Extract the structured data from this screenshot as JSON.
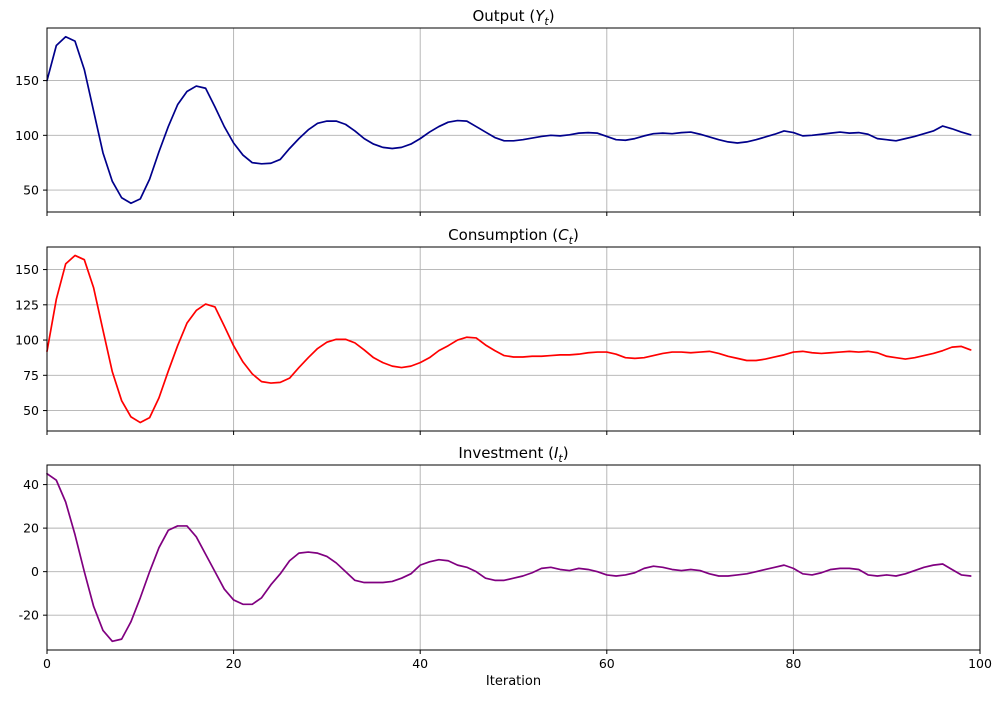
{
  "figure": {
    "background": "#ffffff",
    "grid_color": "#b0b0b0",
    "axis_color": "#000000"
  },
  "chart_data": [
    {
      "type": "line",
      "title": "Output (Y_t)",
      "title_prefix": "Output (",
      "title_var": "Y",
      "title_sub": "t",
      "title_suffix": ")",
      "color": "#00008b",
      "x_start": 0,
      "x_step": 1,
      "xlim": [
        0,
        100
      ],
      "xticks": [
        0,
        20,
        40,
        60,
        80,
        100
      ],
      "ylim": [
        30,
        198
      ],
      "yticks": [
        50,
        100,
        150
      ],
      "grid": true,
      "values": [
        150,
        182,
        190,
        186,
        160,
        122,
        84,
        58,
        43,
        38,
        42,
        60,
        85,
        108,
        128,
        140,
        145,
        143,
        126,
        108,
        93,
        82,
        75,
        74,
        74.5,
        78,
        88,
        97,
        105,
        111,
        113,
        113,
        110,
        104,
        97,
        92,
        89,
        88,
        89,
        92,
        97,
        103,
        108,
        112,
        113.5,
        113,
        108,
        103,
        98,
        95,
        95,
        96,
        97.5,
        99,
        100,
        99.5,
        100.5,
        102,
        102.5,
        102,
        99,
        96,
        95.5,
        97,
        99.5,
        101.5,
        102,
        101.5,
        102.5,
        103,
        101,
        98.5,
        96,
        94,
        93,
        94,
        96,
        98.5,
        101,
        104,
        102.5,
        99.5,
        100,
        101,
        102,
        103,
        102,
        102.5,
        101,
        97,
        96,
        95,
        97,
        99,
        101.5,
        104,
        108.5,
        106,
        103,
        100.5
      ]
    },
    {
      "type": "line",
      "title": "Consumption (C_t)",
      "title_prefix": "Consumption (",
      "title_var": "C",
      "title_sub": "t",
      "title_suffix": ")",
      "color": "#ff0000",
      "x_start": 0,
      "x_step": 1,
      "xlim": [
        0,
        100
      ],
      "xticks": [
        0,
        20,
        40,
        60,
        80,
        100
      ],
      "ylim": [
        35.5,
        166
      ],
      "yticks": [
        50,
        75,
        100,
        125,
        150
      ],
      "grid": true,
      "values": [
        92,
        129,
        154,
        160,
        157,
        137,
        107,
        77.5,
        57,
        45.5,
        41.5,
        45,
        59,
        78,
        96,
        112,
        121,
        125.5,
        123.5,
        110,
        96,
        84.5,
        76,
        70.5,
        69.5,
        70,
        73,
        80.5,
        87.5,
        94,
        98.5,
        100.5,
        100.5,
        98,
        93,
        87.5,
        84,
        81.5,
        80.5,
        81.5,
        84,
        87.5,
        92.5,
        96,
        100,
        102,
        101.5,
        96.5,
        92.5,
        89,
        88,
        88,
        88.5,
        88.5,
        89,
        89.5,
        89.5,
        90,
        91,
        91.5,
        91.5,
        90,
        87.5,
        87,
        87.5,
        89,
        90.5,
        91.5,
        91.5,
        91,
        91.5,
        92,
        90.5,
        88.5,
        87,
        85.5,
        85.5,
        86.5,
        88,
        89.5,
        91.5,
        92,
        91,
        90.5,
        91,
        91.5,
        92,
        91.5,
        92,
        91,
        88.5,
        87.5,
        86.5,
        87.5,
        89,
        90.5,
        92.5,
        95,
        95.5,
        93
      ]
    },
    {
      "type": "line",
      "title": "Investment (I_t)",
      "title_prefix": "Investment (",
      "title_var": "I",
      "title_sub": "t",
      "title_suffix": ")",
      "color": "#800080",
      "x_start": 0,
      "x_step": 1,
      "xlim": [
        0,
        100
      ],
      "xticks": [
        0,
        20,
        40,
        60,
        80,
        100
      ],
      "ylim": [
        -36,
        49
      ],
      "yticks": [
        -20,
        0,
        20,
        40
      ],
      "grid": true,
      "xlabel": "Iteration",
      "values": [
        45,
        42,
        32,
        17,
        0,
        -16,
        -27,
        -32,
        -31,
        -23,
        -12,
        0,
        11,
        19,
        21,
        21,
        16,
        8,
        0,
        -8,
        -13,
        -15,
        -15,
        -12,
        -6,
        -1,
        5,
        8.5,
        9,
        8.5,
        7,
        4,
        0,
        -4,
        -5,
        -5,
        -5,
        -4.5,
        -3,
        -1,
        3,
        4.5,
        5.5,
        5,
        3,
        2,
        0,
        -3,
        -4,
        -4,
        -3,
        -2,
        -0.5,
        1.5,
        2,
        1,
        0.5,
        1.5,
        1,
        0,
        -1.5,
        -2,
        -1.5,
        -0.5,
        1.5,
        2.5,
        2,
        1,
        0.5,
        1,
        0.5,
        -1,
        -2,
        -2,
        -1.5,
        -1,
        0,
        1,
        2,
        3,
        1.5,
        -1,
        -1.5,
        -0.5,
        1,
        1.5,
        1.5,
        1,
        -1.5,
        -2,
        -1.5,
        -2,
        -1,
        0.5,
        2,
        3,
        3.5,
        1,
        -1.5,
        -2
      ]
    }
  ]
}
